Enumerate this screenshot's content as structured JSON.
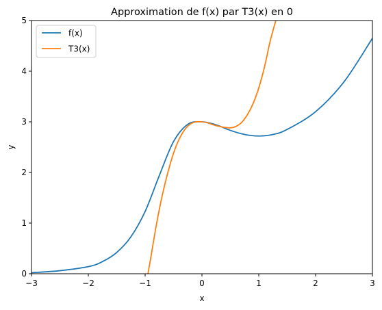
{
  "chart_data": {
    "type": "line",
    "title": "Approximation de f(x) par T3(x) en 0",
    "xlabel": "x",
    "ylabel": "y",
    "xlim": [
      -3,
      3
    ],
    "ylim": [
      0,
      5
    ],
    "xticks": [
      -3,
      -2,
      -1,
      0,
      1,
      2,
      3
    ],
    "xtick_labels": [
      "−3",
      "−2",
      "−1",
      "0",
      "1",
      "2",
      "3"
    ],
    "yticks": [
      0,
      1,
      2,
      3,
      4,
      5
    ],
    "ytick_labels": [
      "0",
      "1",
      "2",
      "3",
      "4",
      "5"
    ],
    "grid": false,
    "legend_position": "top-left",
    "series": [
      {
        "name": "f(x)",
        "color": "#1f77b4",
        "x": [
          -3.0,
          -2.5,
          -2.0,
          -1.75,
          -1.5,
          -1.25,
          -1.0,
          -0.75,
          -0.5,
          -0.25,
          0.0,
          0.25,
          0.5,
          0.75,
          1.0,
          1.25,
          1.5,
          2.0,
          2.5,
          3.0
        ],
        "y": [
          0.02,
          0.06,
          0.14,
          0.24,
          0.42,
          0.73,
          1.23,
          1.94,
          2.61,
          2.95,
          3.0,
          2.94,
          2.83,
          2.75,
          2.72,
          2.75,
          2.85,
          3.2,
          3.79,
          4.65
        ]
      },
      {
        "name": "T3(x)",
        "color": "#ff7f0e",
        "x": [
          -0.95,
          -0.9,
          -0.8,
          -0.7,
          -0.6,
          -0.5,
          -0.4,
          -0.3,
          -0.2,
          -0.1,
          0.0,
          0.1,
          0.2,
          0.3,
          0.4,
          0.5,
          0.6,
          0.7,
          0.8,
          0.9,
          1.0,
          1.1,
          1.2,
          1.3,
          1.33
        ],
        "y": [
          0.0,
          0.32,
          0.98,
          1.54,
          2.0,
          2.38,
          2.66,
          2.85,
          2.96,
          3.0,
          3.0,
          2.98,
          2.94,
          2.91,
          2.89,
          2.88,
          2.91,
          2.99,
          3.14,
          3.36,
          3.67,
          4.08,
          4.59,
          5.0,
          5.1
        ]
      }
    ]
  }
}
